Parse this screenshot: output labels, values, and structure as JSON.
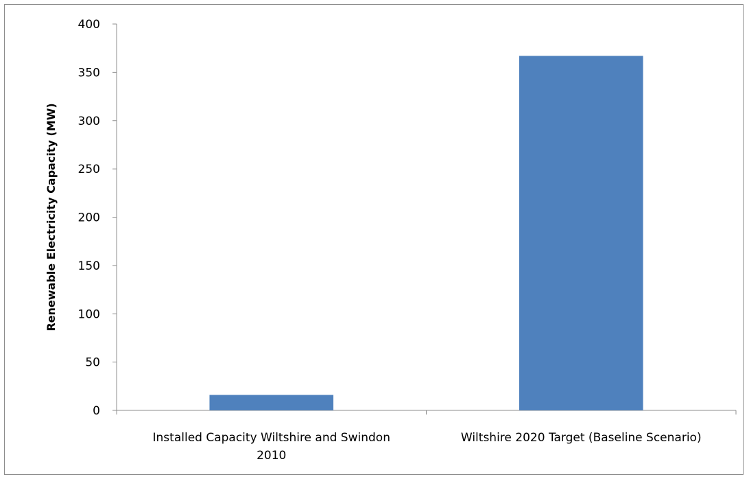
{
  "chart_data": {
    "type": "bar",
    "title": "",
    "xlabel": "",
    "ylabel": "Renewable Electricity Capacity (MW)",
    "categories": [
      [
        "Installed Capacity Wiltshire and Swindon",
        "2010"
      ],
      [
        "Wiltshire 2020 Target (Baseline Scenario)"
      ]
    ],
    "values": [
      16,
      367
    ],
    "ylim": [
      0,
      400
    ],
    "yticks": [
      "0",
      "50",
      "100",
      "150",
      "200",
      "250",
      "300",
      "350",
      "400"
    ],
    "bar_color": "#4f81bd",
    "grid": false,
    "legend": "none"
  }
}
